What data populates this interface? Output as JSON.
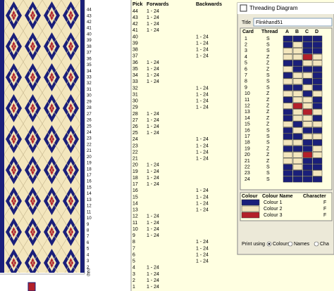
{
  "pattern": {
    "pick_numbers": [
      44,
      43,
      42,
      41,
      40,
      39,
      38,
      37,
      36,
      35,
      34,
      33,
      32,
      31,
      30,
      29,
      28,
      27,
      26,
      25,
      24,
      23,
      22,
      21,
      20,
      19,
      18,
      17,
      16,
      15,
      14,
      13,
      12,
      11,
      10,
      9,
      8,
      7,
      6,
      5,
      4,
      3,
      2,
      1
    ],
    "card_label": "Card"
  },
  "picks": {
    "headers": [
      "Pick",
      "Forwards",
      "Backwards"
    ],
    "rows": [
      {
        "pick": 44,
        "forwards": "1 - 24"
      },
      {
        "pick": 43,
        "forwards": "1 - 24"
      },
      {
        "pick": 42,
        "forwards": "1 - 24"
      },
      {
        "pick": 41,
        "forwards": "1 - 24"
      },
      {
        "pick": 40,
        "backwards": "1 - 24"
      },
      {
        "pick": 39,
        "backwards": "1 - 24"
      },
      {
        "pick": 38,
        "backwards": "1 - 24"
      },
      {
        "pick": 37,
        "backwards": "1 - 24"
      },
      {
        "pick": 36,
        "forwards": "1 - 24"
      },
      {
        "pick": 35,
        "forwards": "1 - 24"
      },
      {
        "pick": 34,
        "forwards": "1 - 24"
      },
      {
        "pick": 33,
        "forwards": "1 - 24"
      },
      {
        "pick": 32,
        "backwards": "1 - 24"
      },
      {
        "pick": 31,
        "backwards": "1 - 24"
      },
      {
        "pick": 30,
        "backwards": "1 - 24"
      },
      {
        "pick": 29,
        "backwards": "1 - 24"
      },
      {
        "pick": 28,
        "forwards": "1 - 24"
      },
      {
        "pick": 27,
        "forwards": "1 - 24"
      },
      {
        "pick": 26,
        "forwards": "1 - 24"
      },
      {
        "pick": 25,
        "forwards": "1 - 24"
      },
      {
        "pick": 24,
        "backwards": "1 - 24"
      },
      {
        "pick": 23,
        "backwards": "1 - 24"
      },
      {
        "pick": 22,
        "backwards": "1 - 24"
      },
      {
        "pick": 21,
        "backwards": "1 - 24"
      },
      {
        "pick": 20,
        "forwards": "1 - 24"
      },
      {
        "pick": 19,
        "forwards": "1 - 24"
      },
      {
        "pick": 18,
        "forwards": "1 - 24"
      },
      {
        "pick": 17,
        "forwards": "1 - 24"
      },
      {
        "pick": 16,
        "backwards": "1 - 24"
      },
      {
        "pick": 15,
        "backwards": "1 - 24"
      },
      {
        "pick": 14,
        "backwards": "1 - 24"
      },
      {
        "pick": 13,
        "backwards": "1 - 24"
      },
      {
        "pick": 12,
        "forwards": "1 - 24"
      },
      {
        "pick": 11,
        "forwards": "1 - 24"
      },
      {
        "pick": 10,
        "forwards": "1 - 24"
      },
      {
        "pick": 9,
        "forwards": "1 - 24"
      },
      {
        "pick": 8,
        "backwards": "1 - 24"
      },
      {
        "pick": 7,
        "backwards": "1 - 24"
      },
      {
        "pick": 6,
        "backwards": "1 - 24"
      },
      {
        "pick": 5,
        "backwards": "1 - 24"
      },
      {
        "pick": 4,
        "forwards": "1 - 24"
      },
      {
        "pick": 3,
        "forwards": "1 - 24"
      },
      {
        "pick": 2,
        "forwards": "1 - 24"
      },
      {
        "pick": 1,
        "forwards": "1 - 24"
      }
    ]
  },
  "window": {
    "title": "Threading Diagram",
    "title_label": "Title",
    "title_value": "Flinkhand51",
    "card_headers": [
      "Card",
      "Thread",
      "A",
      "B",
      "C",
      "D"
    ],
    "cards": [
      {
        "card": 1,
        "thread": "S",
        "colors": [
          "#1a1f7a",
          "#1a1f7a",
          "#1a1f7a",
          "#1a1f7a"
        ]
      },
      {
        "card": 2,
        "thread": "S",
        "colors": [
          "#1a1f7a",
          "#f3e6bd",
          "#1a1f7a",
          "#1a1f7a"
        ]
      },
      {
        "card": 3,
        "thread": "S",
        "colors": [
          "#f3e6bd",
          "#f3e6bd",
          "#1a1f7a",
          "#1a1f7a"
        ]
      },
      {
        "card": 4,
        "thread": "Z",
        "colors": [
          "#f3e6bd",
          "#f3e6bd",
          "#b3202a",
          "#f3e6bd"
        ]
      },
      {
        "card": 5,
        "thread": "Z",
        "colors": [
          "#1a1f7a",
          "#1a1f7a",
          "#f3e6bd",
          "#f3e6bd"
        ]
      },
      {
        "card": 6,
        "thread": "Z",
        "colors": [
          "#f3e6bd",
          "#1a1f7a",
          "#1a1f7a",
          "#1a1f7a"
        ]
      },
      {
        "card": 7,
        "thread": "S",
        "colors": [
          "#1a1f7a",
          "#f3e6bd",
          "#f3e6bd",
          "#1a1f7a"
        ]
      },
      {
        "card": 8,
        "thread": "S",
        "colors": [
          "#f3e6bd",
          "#f3e6bd",
          "#1a1f7a",
          "#1a1f7a"
        ]
      },
      {
        "card": 9,
        "thread": "S",
        "colors": [
          "#1a1f7a",
          "#1a1f7a",
          "#f3e6bd",
          "#1a1f7a"
        ]
      },
      {
        "card": 10,
        "thread": "Z",
        "colors": [
          "#f3e6bd",
          "#f3e6bd",
          "#1a1f7a",
          "#f3e6bd"
        ]
      },
      {
        "card": 11,
        "thread": "Z",
        "colors": [
          "#1a1f7a",
          "#f3e6bd",
          "#f3e6bd",
          "#1a1f7a"
        ]
      },
      {
        "card": 12,
        "thread": "Z",
        "colors": [
          "#f3e6bd",
          "#b3202a",
          "#f3e6bd",
          "#1a1f7a"
        ]
      },
      {
        "card": 13,
        "thread": "Z",
        "colors": [
          "#1a1f7a",
          "#f3e6bd",
          "#b3202a",
          "#f3e6bd"
        ]
      },
      {
        "card": 14,
        "thread": "Z",
        "colors": [
          "#1a1f7a",
          "#f3e6bd",
          "#f3e6bd",
          "#1a1f7a"
        ]
      },
      {
        "card": 15,
        "thread": "Z",
        "colors": [
          "#f3e6bd",
          "#1a1f7a",
          "#f3e6bd",
          "#f3e6bd"
        ]
      },
      {
        "card": 16,
        "thread": "S",
        "colors": [
          "#1a1f7a",
          "#f3e6bd",
          "#1a1f7a",
          "#1a1f7a"
        ]
      },
      {
        "card": 17,
        "thread": "S",
        "colors": [
          "#1a1f7a",
          "#1a1f7a",
          "#f3e6bd",
          "#f3e6bd"
        ]
      },
      {
        "card": 18,
        "thread": "S",
        "colors": [
          "#f3e6bd",
          "#f3e6bd",
          "#1a1f7a",
          "#1a1f7a"
        ]
      },
      {
        "card": 19,
        "thread": "Z",
        "colors": [
          "#1a1f7a",
          "#1a1f7a",
          "#1a1f7a",
          "#f3e6bd"
        ]
      },
      {
        "card": 20,
        "thread": "Z",
        "colors": [
          "#f3e6bd",
          "#f3e6bd",
          "#b3202a",
          "#f3e6bd"
        ]
      },
      {
        "card": 21,
        "thread": "Z",
        "colors": [
          "#f3e6bd",
          "#f3e6bd",
          "#1a1f7a",
          "#1a1f7a"
        ]
      },
      {
        "card": 22,
        "thread": "S",
        "colors": [
          "#1a1f7a",
          "#f3e6bd",
          "#1a1f7a",
          "#1a1f7a"
        ]
      },
      {
        "card": 23,
        "thread": "S",
        "colors": [
          "#1a1f7a",
          "#1a1f7a",
          "#1a1f7a",
          "#f3e6bd"
        ]
      },
      {
        "card": 24,
        "thread": "S",
        "colors": [
          "#1a1f7a",
          "#1a1f7a",
          "#1a1f7a",
          "#1a1f7a"
        ]
      }
    ],
    "colour_headers": [
      "Colour",
      "Colour Name",
      "Character"
    ],
    "colours": [
      {
        "color": "#1a1f7a",
        "name": "Colour 1",
        "character": "F"
      },
      {
        "color": "#f3e6bd",
        "name": "Colour 2",
        "character": "F"
      },
      {
        "color": "#b3202a",
        "name": "Colour 3",
        "character": "F"
      }
    ],
    "print_label": "Print using",
    "print_options": [
      "Colours",
      "Names",
      "Cha"
    ]
  }
}
